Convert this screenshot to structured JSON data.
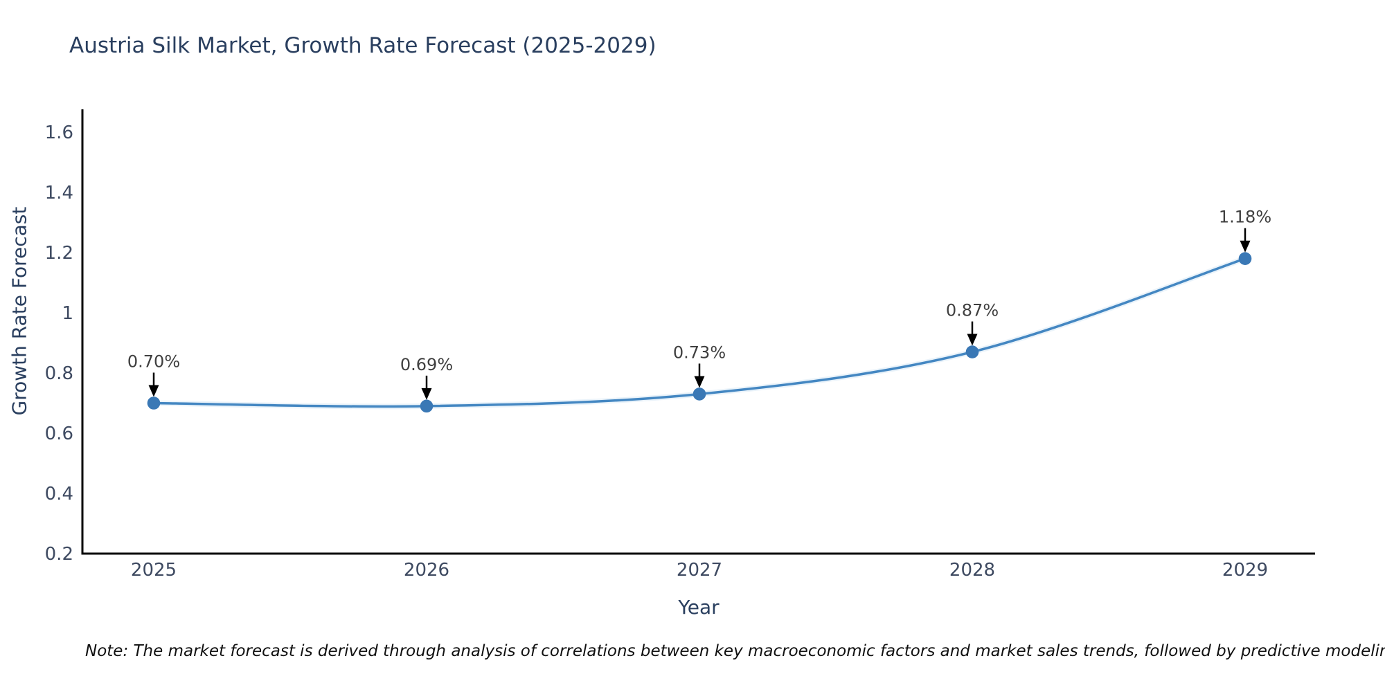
{
  "chart_data": {
    "type": "line",
    "title": "Austria Silk Market, Growth Rate Forecast (2025-2029)",
    "xlabel": "Year",
    "ylabel": "Growth Rate Forecast",
    "categories": [
      "2025",
      "2026",
      "2027",
      "2028",
      "2029"
    ],
    "x": [
      2025,
      2026,
      2027,
      2028,
      2029
    ],
    "values": [
      0.7,
      0.69,
      0.73,
      0.87,
      1.18
    ],
    "point_labels": [
      "0.70%",
      "0.69%",
      "0.73%",
      "0.87%",
      "1.18%"
    ],
    "ytick_labels": [
      "1.6",
      "1.4",
      "1.2",
      "1",
      "0.8",
      "0.6",
      "0.4",
      "0.2"
    ],
    "ytick_values": [
      1.6,
      1.4,
      1.2,
      1.0,
      0.8,
      0.6,
      0.4,
      0.2
    ],
    "ylim": [
      0.2,
      1.67
    ],
    "grid": false,
    "legend": "none",
    "line_color": "#4487c2",
    "line_halo_color": "#c4def2",
    "marker_color": "#3a78b5",
    "axis_color": "#000000",
    "annotation_arrow_color": "#000000"
  },
  "note": "Note: The market forecast is derived through analysis of correlations between key macroeconomic factors and market sales trends, followed by predictive modeling to project future sales"
}
